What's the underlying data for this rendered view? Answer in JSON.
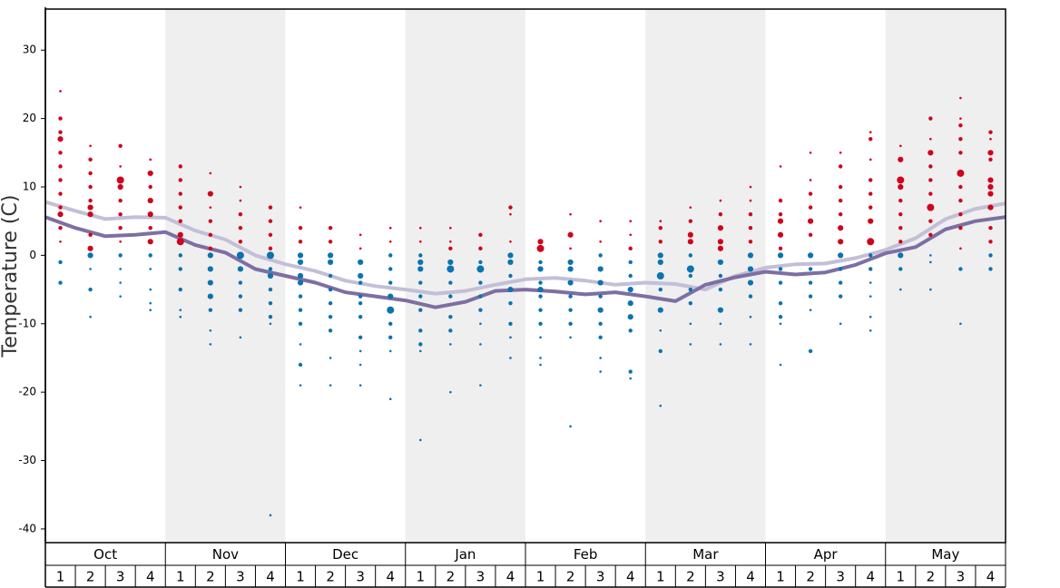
{
  "chart_data": {
    "type": "dot-strip",
    "y_label": "Temperature (C)",
    "months": [
      "Oct",
      "Nov",
      "Dec",
      "Jan",
      "Feb",
      "Mar",
      "Apr",
      "May"
    ],
    "week_labels": [
      "1",
      "2",
      "3",
      "4"
    ],
    "shade_alternate": true,
    "ylim": [
      -42,
      36
    ],
    "yticks": [
      -40,
      -30,
      -20,
      -10,
      0,
      10,
      20,
      30
    ],
    "xlim": [
      0,
      32
    ],
    "warm_color": "#d0021b",
    "cold_color": "#0a73b0",
    "lines": [
      {
        "color": "#c3bfd8",
        "x": [
          0,
          1,
          2,
          3,
          4,
          5,
          6,
          7,
          8,
          9,
          10,
          11,
          12,
          13,
          14,
          15,
          16,
          17,
          18,
          19,
          20,
          21,
          22,
          23,
          24,
          25,
          26,
          27,
          28,
          29,
          30,
          31,
          32
        ],
        "values": [
          7.8,
          6.5,
          5.3,
          5.6,
          5.5,
          3.6,
          2.3,
          0,
          -1.3,
          -2.3,
          -3.7,
          -4.5,
          -5,
          -5.6,
          -5.2,
          -4.3,
          -3.5,
          -3.3,
          -3.7,
          -4.3,
          -4,
          -4.2,
          -5,
          -3,
          -1.8,
          -1.3,
          -1.2,
          -0.4,
          0.8,
          2.5,
          5.3,
          6.8,
          7.6
        ]
      },
      {
        "color": "#7d6fa3",
        "x": [
          0,
          1,
          2,
          3,
          4,
          5,
          6,
          7,
          8,
          9,
          10,
          11,
          12,
          13,
          14,
          15,
          16,
          17,
          18,
          19,
          20,
          21,
          22,
          23,
          24,
          25,
          26,
          27,
          28,
          29,
          30,
          31,
          32
        ],
        "values": [
          5.6,
          4,
          2.8,
          3,
          3.4,
          1.5,
          0.4,
          -2,
          -3,
          -4,
          -5.4,
          -6,
          -6.6,
          -7.6,
          -6.8,
          -5.2,
          -5,
          -5.3,
          -5.7,
          -5.4,
          -6,
          -6.7,
          -4.3,
          -3.2,
          -2.4,
          -2.8,
          -2.5,
          -1.4,
          0.3,
          1.2,
          3.8,
          5,
          5.6
        ]
      }
    ],
    "dots": [
      {
        "values": [
          24,
          20,
          18,
          17,
          15,
          13,
          11,
          9,
          7,
          6,
          4,
          2,
          -1,
          -4
        ],
        "sizes": [
          1,
          2,
          2,
          3,
          2,
          2,
          2,
          2,
          2,
          3,
          2,
          1,
          2,
          2
        ]
      },
      {
        "values": [
          16,
          14,
          12,
          10,
          8,
          7,
          6,
          3,
          1,
          0,
          -2,
          -5,
          -9
        ],
        "sizes": [
          1,
          2,
          2,
          2,
          2,
          3,
          3,
          2,
          3,
          3,
          1,
          2,
          1
        ]
      },
      {
        "values": [
          16,
          13,
          11,
          10,
          8,
          6,
          4,
          2,
          0,
          -2,
          -4,
          -6
        ],
        "sizes": [
          2,
          1,
          4,
          3,
          2,
          2,
          2,
          1,
          2,
          1,
          1,
          1
        ]
      },
      {
        "values": [
          14,
          12,
          10,
          8,
          6,
          4,
          2,
          0,
          -2,
          -5,
          -7,
          -8
        ],
        "sizes": [
          1,
          3,
          2,
          3,
          3,
          2,
          3,
          2,
          1,
          1,
          1,
          1
        ]
      },
      {
        "values": [
          13,
          11,
          9,
          7,
          5,
          3,
          2,
          0,
          -2,
          -5,
          -8,
          -9
        ],
        "sizes": [
          2,
          2,
          2,
          2,
          2,
          3,
          4,
          2,
          2,
          2,
          1,
          1
        ]
      },
      {
        "values": [
          12,
          9,
          7,
          5,
          3,
          1,
          0,
          -2,
          -4,
          -6,
          -8,
          -11,
          -13
        ],
        "sizes": [
          1,
          3,
          1,
          2,
          2,
          2,
          3,
          3,
          3,
          3,
          2,
          1,
          1
        ]
      },
      {
        "values": [
          10,
          8,
          6,
          4,
          2,
          0,
          -2,
          -4,
          -6,
          -8,
          -12
        ],
        "sizes": [
          1,
          1,
          2,
          2,
          2,
          4,
          3,
          2,
          2,
          2,
          1
        ]
      },
      {
        "values": [
          7,
          5,
          3,
          1,
          0,
          -2,
          -3,
          -5,
          -7,
          -9,
          -10,
          -38
        ],
        "sizes": [
          2,
          2,
          2,
          2,
          4,
          2,
          3,
          2,
          2,
          2,
          1,
          1
        ]
      },
      {
        "values": [
          7,
          4,
          2,
          0,
          -1,
          -3,
          -4,
          -6,
          -8,
          -10,
          -13,
          -16,
          -19
        ],
        "sizes": [
          1,
          2,
          2,
          3,
          3,
          3,
          3,
          2,
          2,
          2,
          1,
          2,
          1
        ]
      },
      {
        "values": [
          4,
          2,
          0,
          -1,
          -3,
          -5,
          -7,
          -9,
          -11,
          -15,
          -19
        ],
        "sizes": [
          2,
          2,
          3,
          3,
          2,
          2,
          2,
          2,
          2,
          1,
          1
        ]
      },
      {
        "values": [
          3,
          1,
          -1,
          -3,
          -4,
          -6,
          -7,
          -9,
          -12,
          -14,
          -16,
          -19
        ],
        "sizes": [
          1,
          1,
          3,
          3,
          2,
          2,
          2,
          2,
          2,
          1,
          1,
          1
        ]
      },
      {
        "values": [
          4,
          2,
          0,
          -2,
          -4,
          -6,
          -8,
          -10,
          -12,
          -14,
          -21
        ],
        "sizes": [
          1,
          1,
          2,
          2,
          2,
          3,
          4,
          2,
          2,
          1,
          1
        ]
      },
      {
        "values": [
          4,
          2,
          0,
          -1,
          -2,
          -4,
          -6,
          -8,
          -11,
          -13,
          -14,
          -27
        ],
        "sizes": [
          1,
          1,
          2,
          3,
          3,
          2,
          2,
          2,
          2,
          2,
          1,
          1
        ]
      },
      {
        "values": [
          4,
          2,
          1,
          -1,
          -2,
          -4,
          -6,
          -9,
          -11,
          -13,
          -20
        ],
        "sizes": [
          1,
          1,
          2,
          3,
          4,
          2,
          2,
          2,
          2,
          1,
          1
        ]
      },
      {
        "values": [
          3,
          1,
          -1,
          -2,
          -4,
          -6,
          -8,
          -10,
          -13,
          -19
        ],
        "sizes": [
          2,
          2,
          2,
          4,
          2,
          2,
          2,
          1,
          1,
          1
        ]
      },
      {
        "values": [
          7,
          6,
          2,
          0,
          -1,
          -3,
          -5,
          -7,
          -10,
          -12,
          -15
        ],
        "sizes": [
          2,
          1,
          1,
          3,
          3,
          2,
          3,
          2,
          2,
          1,
          1
        ]
      },
      {
        "values": [
          2,
          1,
          -1,
          -2,
          -4,
          -5,
          -6,
          -8,
          -10,
          -12,
          -15,
          -16
        ],
        "sizes": [
          3,
          4,
          2,
          3,
          2,
          3,
          2,
          2,
          2,
          1,
          1,
          1
        ]
      },
      {
        "values": [
          6,
          3,
          1,
          -1,
          -2,
          -4,
          -6,
          -8,
          -10,
          -12,
          -25
        ],
        "sizes": [
          1,
          3,
          1,
          3,
          3,
          3,
          2,
          2,
          2,
          1,
          1
        ]
      },
      {
        "values": [
          5,
          2,
          0,
          -2,
          -4,
          -6,
          -8,
          -10,
          -12,
          -15,
          -17
        ],
        "sizes": [
          1,
          1,
          2,
          3,
          3,
          2,
          3,
          2,
          2,
          1,
          1
        ]
      },
      {
        "values": [
          5,
          3,
          1,
          -1,
          -3,
          -5,
          -7,
          -9,
          -11,
          -17,
          -18
        ],
        "sizes": [
          1,
          1,
          2,
          2,
          2,
          3,
          3,
          3,
          2,
          2,
          1
        ]
      },
      {
        "values": [
          5,
          4,
          2,
          0,
          -1,
          -3,
          -5,
          -8,
          -11,
          -14,
          -22
        ],
        "sizes": [
          1,
          2,
          2,
          3,
          3,
          4,
          2,
          3,
          1,
          2,
          1
        ]
      },
      {
        "values": [
          7,
          5,
          3,
          2,
          0,
          -2,
          -3,
          -5,
          -7,
          -10,
          -13
        ],
        "sizes": [
          1,
          2,
          3,
          3,
          2,
          4,
          2,
          2,
          2,
          1,
          1
        ]
      },
      {
        "values": [
          8,
          6,
          4,
          2,
          1,
          -1,
          -3,
          -5,
          -8,
          -10,
          -13
        ],
        "sizes": [
          1,
          2,
          3,
          3,
          3,
          3,
          2,
          2,
          3,
          1,
          1
        ]
      },
      {
        "values": [
          10,
          8,
          6,
          4,
          2,
          0,
          -2,
          -4,
          -6,
          -9,
          -13
        ],
        "sizes": [
          1,
          1,
          2,
          2,
          2,
          3,
          3,
          3,
          2,
          1,
          1
        ]
      },
      {
        "values": [
          13,
          8,
          6,
          5,
          3,
          1,
          0,
          -2,
          -4,
          -7,
          -9,
          -10,
          -16
        ],
        "sizes": [
          1,
          2,
          2,
          3,
          3,
          2,
          3,
          2,
          2,
          2,
          2,
          1,
          1
        ]
      },
      {
        "values": [
          15,
          11,
          9,
          7,
          5,
          3,
          0,
          -2,
          -4,
          -6,
          -8,
          -14
        ],
        "sizes": [
          1,
          1,
          2,
          2,
          3,
          2,
          3,
          2,
          2,
          2,
          1,
          2
        ]
      },
      {
        "values": [
          15,
          13,
          10,
          8,
          6,
          4,
          2,
          0,
          -2,
          -4,
          -6,
          -10
        ],
        "sizes": [
          1,
          2,
          2,
          2,
          2,
          3,
          3,
          3,
          2,
          2,
          2,
          1
        ]
      },
      {
        "values": [
          18,
          17,
          14,
          11,
          9,
          7,
          5,
          2,
          0,
          -2,
          -4,
          -6,
          -9,
          -11
        ],
        "sizes": [
          1,
          2,
          1,
          2,
          2,
          2,
          3,
          4,
          2,
          2,
          1,
          1,
          1,
          1
        ]
      },
      {
        "values": [
          16,
          14,
          11,
          10,
          8,
          6,
          4,
          2,
          0,
          -2,
          -5
        ],
        "sizes": [
          1,
          3,
          4,
          3,
          2,
          2,
          2,
          2,
          3,
          2,
          1
        ]
      },
      {
        "values": [
          20,
          17,
          15,
          13,
          11,
          9,
          7,
          5,
          3,
          0,
          -1,
          -5
        ],
        "sizes": [
          2,
          1,
          3,
          2,
          2,
          2,
          4,
          2,
          2,
          1,
          1,
          1
        ]
      },
      {
        "values": [
          23,
          20,
          19,
          17,
          15,
          12,
          10,
          8,
          6,
          4,
          1,
          -2,
          -10
        ],
        "sizes": [
          1,
          1,
          2,
          2,
          2,
          4,
          2,
          2,
          2,
          2,
          1,
          2,
          1
        ]
      },
      {
        "values": [
          18,
          17,
          15,
          14,
          11,
          10,
          9,
          7,
          4,
          2,
          0,
          -2
        ],
        "sizes": [
          2,
          1,
          3,
          2,
          3,
          3,
          3,
          3,
          2,
          2,
          2,
          2
        ]
      }
    ]
  }
}
